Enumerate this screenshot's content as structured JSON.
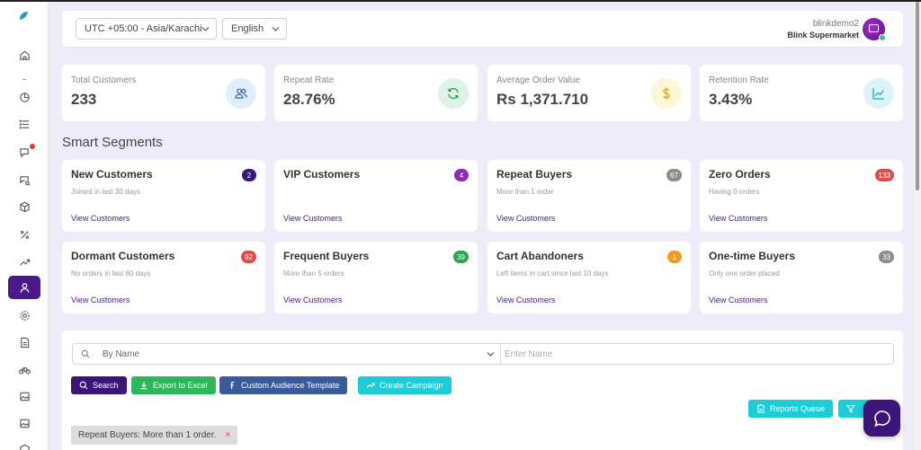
{
  "topbar": {
    "timezone": "UTC +05:00 - Asia/Karachi",
    "language": "English",
    "user_name": "blinkdemo2",
    "user_org": "Blink Supermarket"
  },
  "sidebar": {
    "items": [
      {
        "icon": "home-icon"
      },
      {
        "icon": "pie-chart-icon"
      },
      {
        "icon": "list-icon"
      },
      {
        "icon": "chat-notification-icon"
      },
      {
        "icon": "search-chat-icon"
      },
      {
        "icon": "box-icon"
      },
      {
        "icon": "percent-icon"
      },
      {
        "icon": "trending-up-icon"
      },
      {
        "icon": "user-icon",
        "active": true
      },
      {
        "icon": "gear-icon"
      },
      {
        "icon": "document-icon"
      },
      {
        "icon": "bike-icon"
      },
      {
        "icon": "image-icon"
      },
      {
        "icon": "image-icon"
      },
      {
        "icon": "cube-icon"
      }
    ]
  },
  "stats": [
    {
      "label": "Total Customers",
      "value": "233",
      "icon": "users-icon",
      "bg": "#dfeefb",
      "fg": "#2b5fa8"
    },
    {
      "label": "Repeat Rate",
      "value": "28.76%",
      "icon": "refresh-icon",
      "bg": "#dff3e4",
      "fg": "#2e9c4d"
    },
    {
      "label": "Average Order Value",
      "value": "Rs 1,371.710",
      "icon": "dollar-icon",
      "bg": "#fdf6d8",
      "fg": "#e5a412"
    },
    {
      "label": "Retention Rate",
      "value": "3.43%",
      "icon": "chart-line-icon",
      "bg": "#dcf3f9",
      "fg": "#1fa9c9"
    }
  ],
  "section_title": "Smart Segments",
  "segments": [
    {
      "title": "New Customers",
      "sub": "Joined in last 30 days",
      "count": "2",
      "badge": "#3b1578",
      "link": "View Customers"
    },
    {
      "title": "VIP Customers",
      "sub": "",
      "count": "4",
      "badge": "#8e2ab8",
      "link": "View Customers"
    },
    {
      "title": "Repeat Buyers",
      "sub": "More than 1 order",
      "count": "67",
      "badge": "#8d8d8d",
      "link": "View Customers"
    },
    {
      "title": "Zero Orders",
      "sub": "Having 0 orders",
      "count": "133",
      "badge": "#e04b4b",
      "link": "View Customers"
    },
    {
      "title": "Dormant Customers",
      "sub": "No orders in last 60 days",
      "count": "92",
      "badge": "#e04b4b",
      "link": "View Customers"
    },
    {
      "title": "Frequent Buyers",
      "sub": "More than 5 orders",
      "count": "39",
      "badge": "#2fa652",
      "link": "View Customers"
    },
    {
      "title": "Cart Abandoners",
      "sub": "Left items in cart since last 10 days",
      "count": "1",
      "badge": "#f39a1e",
      "link": "View Customers"
    },
    {
      "title": "One-time Buyers",
      "sub": "Only one order placed",
      "count": "33",
      "badge": "#8d8d8d",
      "link": "View Customers"
    }
  ],
  "filter": {
    "search_by": "By Name",
    "placeholder": "Enter Name",
    "buttons": {
      "search": "Search",
      "export": "Export to Excel",
      "audience": "Custom Audience Template",
      "campaign": "Create Campaign",
      "reports": "Reports Queue"
    },
    "chip": "Repeat Buyers: More than 1 order.",
    "chip_close": "×"
  },
  "colors": {
    "primary": "#4a1a86",
    "search_btn": "#3b1578",
    "export_btn": "#2fb55a",
    "audience_btn": "#3b5a9c",
    "teal_btn": "#1ecbd6"
  }
}
